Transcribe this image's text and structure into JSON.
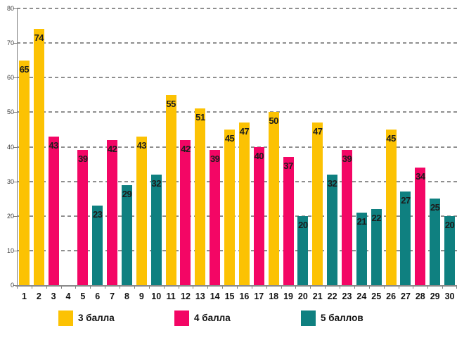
{
  "chart_data": {
    "type": "bar",
    "title": "",
    "xlabel": "",
    "ylabel": "",
    "ylim": [
      0,
      80
    ],
    "ytick_step": 10,
    "ytick_labels": [
      "0",
      "10",
      "20",
      "30",
      "40",
      "50",
      "60",
      "70",
      "80"
    ],
    "grid": "dashed-horizontal",
    "legend_position": "bottom",
    "legend": [
      {
        "label": "3 балла",
        "color": "#FCC203"
      },
      {
        "label": "4 балла",
        "color": "#F30665"
      },
      {
        "label": "5 баллов",
        "color": "#0F8080"
      }
    ],
    "categories": [
      "1",
      "2",
      "3",
      "4",
      "5",
      "6",
      "7",
      "8",
      "9",
      "10",
      "11",
      "12",
      "13",
      "14",
      "15",
      "16",
      "17",
      "18",
      "19",
      "20",
      "21",
      "22",
      "23",
      "24",
      "25",
      "26",
      "27",
      "28",
      "29",
      "30"
    ],
    "bars": [
      {
        "category": "1",
        "series": "3 балла",
        "value": 65
      },
      {
        "category": "2",
        "series": "3 балла",
        "value": 74
      },
      {
        "category": "3",
        "series": "4 балла",
        "value": 43
      },
      {
        "category": "4",
        "series": null,
        "value": null
      },
      {
        "category": "5",
        "series": "4 балла",
        "value": 39
      },
      {
        "category": "6",
        "series": "5 баллов",
        "value": 23
      },
      {
        "category": "7",
        "series": "4 балла",
        "value": 42
      },
      {
        "category": "8",
        "series": "5 баллов",
        "value": 29
      },
      {
        "category": "9",
        "series": "3 балла",
        "value": 43
      },
      {
        "category": "10",
        "series": "5 баллов",
        "value": 32
      },
      {
        "category": "11",
        "series": "3 балла",
        "value": 55
      },
      {
        "category": "12",
        "series": "4 балла",
        "value": 42
      },
      {
        "category": "13",
        "series": "3 балла",
        "value": 51
      },
      {
        "category": "14",
        "series": "4 балла",
        "value": 39
      },
      {
        "category": "15",
        "series": "3 балла",
        "value": 45
      },
      {
        "category": "16",
        "series": "3 балла",
        "value": 47
      },
      {
        "category": "17",
        "series": "4 балла",
        "value": 40
      },
      {
        "category": "18",
        "series": "3 балла",
        "value": 50
      },
      {
        "category": "19",
        "series": "4 балла",
        "value": 37
      },
      {
        "category": "20",
        "series": "5 баллов",
        "value": 20
      },
      {
        "category": "21",
        "series": "3 балла",
        "value": 47
      },
      {
        "category": "22",
        "series": "5 баллов",
        "value": 32
      },
      {
        "category": "23",
        "series": "4 балла",
        "value": 39
      },
      {
        "category": "24",
        "series": "5 баллов",
        "value": 21
      },
      {
        "category": "25",
        "series": "5 баллов",
        "value": 22
      },
      {
        "category": "26",
        "series": "3 балла",
        "value": 45
      },
      {
        "category": "27",
        "series": "5 баллов",
        "value": 27
      },
      {
        "category": "28",
        "series": "4 балла",
        "value": 34
      },
      {
        "category": "29",
        "series": "5 баллов",
        "value": 25
      },
      {
        "category": "30",
        "series": "5 баллов",
        "value": 20
      }
    ],
    "axis_color": "#808080",
    "grid_color": "#8f8f8f",
    "value_label_color": "#1c1c1c"
  }
}
